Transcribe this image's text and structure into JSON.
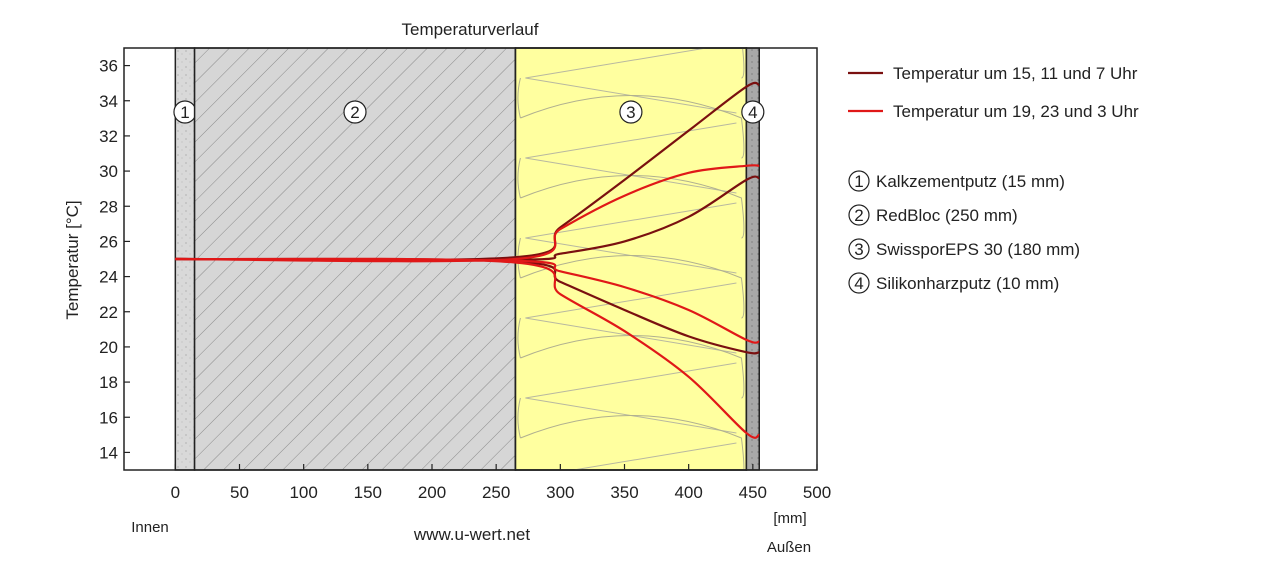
{
  "chart_data": {
    "type": "line",
    "title": "Temperaturverlauf",
    "xlabel": "[mm]",
    "ylabel": "Temperatur [°C]",
    "xlim": [
      -40,
      500
    ],
    "ylim": [
      13,
      37
    ],
    "xticks": [
      0,
      50,
      100,
      150,
      200,
      250,
      300,
      350,
      400,
      450,
      500
    ],
    "yticks": [
      14,
      16,
      18,
      20,
      22,
      24,
      26,
      28,
      30,
      32,
      34,
      36
    ],
    "inside_label": "Innen",
    "outside_label": "Außen",
    "source": "www.u-wert.net",
    "layers": [
      {
        "num": "1",
        "name": "Kalkzementputz (15 mm)",
        "x0": 0,
        "x1": 15,
        "fill": "#d9d9d9",
        "pattern": "speckle"
      },
      {
        "num": "2",
        "name": "RedBloc (250 mm)",
        "x0": 15,
        "x1": 265,
        "fill": "#d6d6d6",
        "pattern": "hatch"
      },
      {
        "num": "3",
        "name": "SwissporEPS 30 (180 mm)",
        "x0": 265,
        "x1": 445,
        "fill": "#ffff9f",
        "pattern": "insulation"
      },
      {
        "num": "4",
        "name": "Silikonharzputz (10 mm)",
        "x0": 445,
        "x1": 455,
        "fill": "#a8a8a8",
        "pattern": "speckle"
      }
    ],
    "series": [
      {
        "name": "Temperatur um 15, 11 und 7 Uhr",
        "color": "#7a1010",
        "curves": [
          {
            "x": [
              0,
              265,
              300,
              350,
              400,
              445,
              455
            ],
            "y": [
              25,
              25.1,
              26.8,
              29.5,
              32.3,
              34.8,
              34.9
            ]
          },
          {
            "x": [
              0,
              265,
              300,
              350,
              400,
              445,
              455
            ],
            "y": [
              25,
              24.95,
              25.3,
              26.0,
              27.4,
              29.5,
              29.6
            ]
          },
          {
            "x": [
              0,
              265,
              300,
              350,
              400,
              445,
              455
            ],
            "y": [
              25,
              24.85,
              23.7,
              22.1,
              20.6,
              19.7,
              19.7
            ]
          }
        ]
      },
      {
        "name": "Temperatur um 19, 23 und 3 Uhr",
        "color": "#e01818",
        "curves": [
          {
            "x": [
              0,
              265,
              300,
              350,
              400,
              445,
              455
            ],
            "y": [
              25,
              25.0,
              26.7,
              28.6,
              29.9,
              30.3,
              30.3
            ]
          },
          {
            "x": [
              0,
              265,
              300,
              350,
              400,
              445,
              455
            ],
            "y": [
              25,
              24.9,
              24.3,
              23.4,
              22.1,
              20.4,
              20.3
            ]
          },
          {
            "x": [
              0,
              265,
              300,
              350,
              400,
              445,
              455
            ],
            "y": [
              25,
              24.8,
              23.0,
              20.9,
              18.3,
              15.1,
              15.0
            ]
          }
        ]
      }
    ],
    "legend_position": "right"
  }
}
